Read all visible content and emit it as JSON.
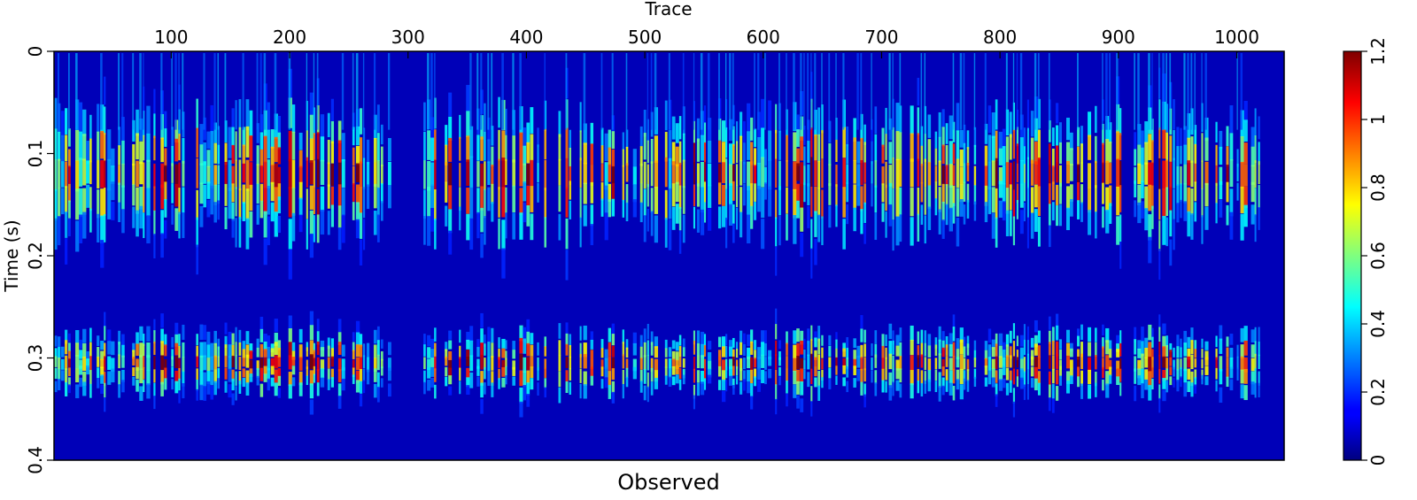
{
  "chart_data": {
    "type": "heatmap",
    "title": "Observed",
    "xlabel": "Trace",
    "ylabel": "Time (s)",
    "xlim": [
      1,
      1040
    ],
    "ylim": [
      0,
      0.4
    ],
    "x_ticks": [
      100,
      200,
      300,
      400,
      500,
      600,
      700,
      800,
      900,
      1000
    ],
    "y_ticks": [
      0,
      0.1,
      0.2,
      0.3,
      0.4
    ],
    "x_tick_labels": [
      "100",
      "200",
      "300",
      "400",
      "500",
      "600",
      "700",
      "800",
      "900",
      "1000"
    ],
    "y_tick_labels": [
      "0",
      "0.1",
      "0.2",
      "0.3",
      "0.4"
    ],
    "colorbar": {
      "range": [
        0,
        1.2
      ],
      "ticks": [
        0,
        0.2,
        0.4,
        0.6,
        0.8,
        1,
        1.2
      ],
      "tick_labels": [
        "0",
        "0.2",
        "0.4",
        "0.6",
        "0.8",
        "1",
        "1.2"
      ],
      "colormap": "jet"
    },
    "events": [
      {
        "center_time_s": 0.12,
        "upper_time_s": 0.095,
        "lower_time_s": 0.135,
        "peak_value": 1.2
      },
      {
        "center_time_s": 0.305,
        "upper_time_s": 0.295,
        "lower_time_s": 0.315,
        "peak_value": 1.2
      }
    ],
    "gap_traces": [
      [
        285,
        310
      ]
    ],
    "background_value": 0.05
  },
  "colors": {
    "background_blue": "#0000b8",
    "jet_low": "#00007f",
    "jet_high": "#7f0000"
  }
}
